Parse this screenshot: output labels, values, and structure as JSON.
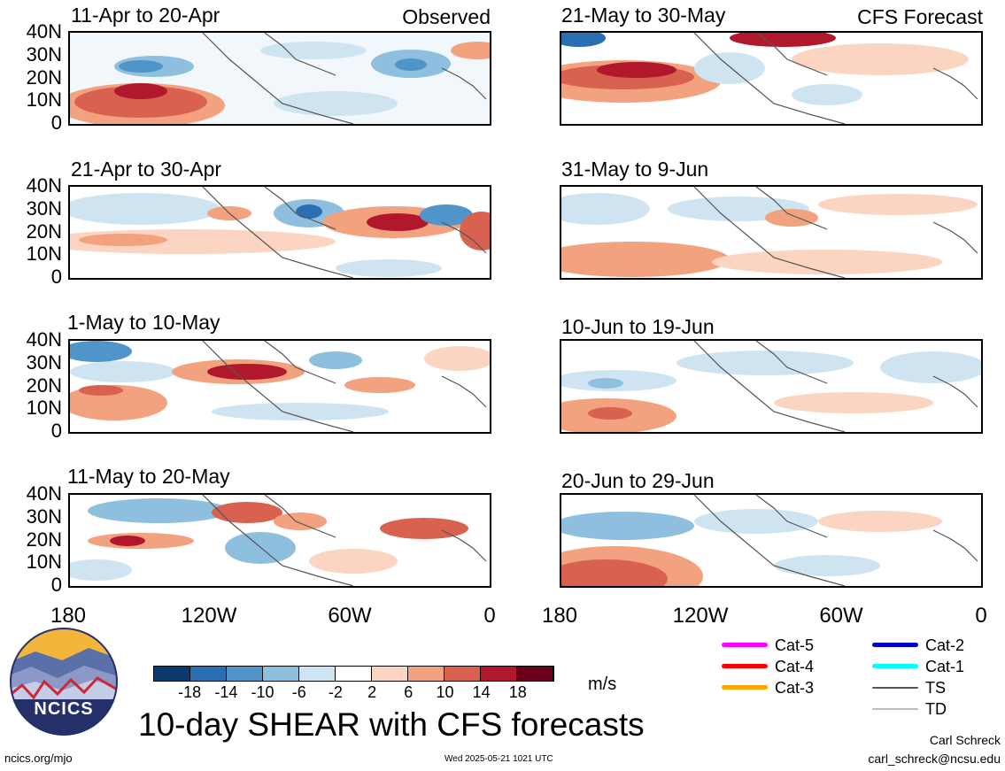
{
  "header": {
    "observed_label": "Observed",
    "forecast_label": "CFS Forecast"
  },
  "panels": [
    {
      "title": "11-Apr to 20-Apr",
      "column": "observed"
    },
    {
      "title": "21-Apr to 30-Apr",
      "column": "observed"
    },
    {
      "title": "1-May to 10-May",
      "column": "observed"
    },
    {
      "title": "11-May to 20-May",
      "column": "observed"
    },
    {
      "title": "21-May to 30-May",
      "column": "forecast"
    },
    {
      "title": "31-May to 9-Jun",
      "column": "forecast"
    },
    {
      "title": "10-Jun to 19-Jun",
      "column": "forecast"
    },
    {
      "title": "20-Jun to 29-Jun",
      "column": "forecast"
    }
  ],
  "axes": {
    "lat_ticks": [
      "40N",
      "30N",
      "20N",
      "10N",
      "0"
    ],
    "lon_ticks": [
      "180",
      "120W",
      "60W",
      "0"
    ]
  },
  "colorbar": {
    "labels": [
      "-18",
      "-14",
      "-10",
      "-6",
      "-2",
      "2",
      "6",
      "10",
      "14",
      "18"
    ],
    "colors": [
      "#0b3a6e",
      "#2a6fb2",
      "#4f95c9",
      "#8fbfdf",
      "#cfe4f1",
      "#ffffff",
      "#fbd5c1",
      "#f2a27f",
      "#d9614f",
      "#b2182b",
      "#6c0019"
    ],
    "units": "m/s"
  },
  "legend": [
    {
      "label": "Cat-5",
      "color": "#ff00ff"
    },
    {
      "label": "Cat-4",
      "color": "#ff0000"
    },
    {
      "label": "Cat-3",
      "color": "#ffa500"
    },
    {
      "label": "Cat-2",
      "color": "#0000cc"
    },
    {
      "label": "Cat-1",
      "color": "#00ffff"
    },
    {
      "label": "TS",
      "color": "#555555"
    },
    {
      "label": "TD",
      "color": "#bbbbbb"
    }
  ],
  "logo": {
    "text": "NCICS"
  },
  "main_title": "10-day SHEAR with CFS forecasts",
  "footer": {
    "url": "ncics.org/mjo",
    "timestamp": "Wed 2025-05-21 1021 UTC",
    "author": "Carl Schreck",
    "email": "carl_schreck@ncsu.edu"
  }
}
